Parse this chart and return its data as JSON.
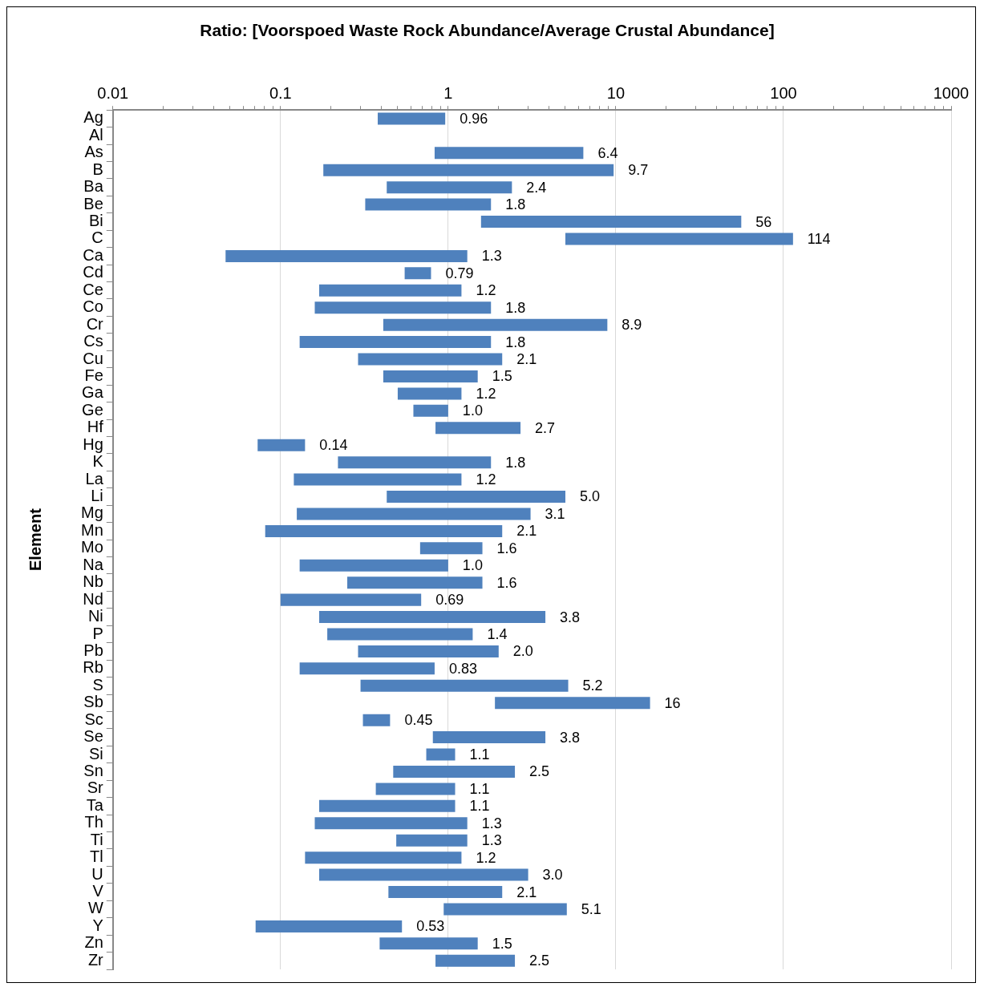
{
  "chart_data": {
    "type": "bar",
    "orientation": "horizontal",
    "title": "Ratio: [Voorspoed Waste Rock Abundance/Average Crustal Abundance]",
    "ylabel": "Element",
    "log": "x",
    "grid": "x",
    "legend": false,
    "color": "#4f81bd",
    "categories": [
      "Ag",
      "Al",
      "As",
      "B",
      "Ba",
      "Be",
      "Bi",
      "C",
      "Ca",
      "Cd",
      "Ce",
      "Co",
      "Cr",
      "Cs",
      "Cu",
      "Fe",
      "Ga",
      "Ge",
      "Hf",
      "Hg",
      "K",
      "La",
      "Li",
      "Mg",
      "Mn",
      "Mo",
      "Na",
      "Nb",
      "Nd",
      "Ni",
      "P",
      "Pb",
      "Rb",
      "S",
      "Sb",
      "Sc",
      "Se",
      "Si",
      "Sn",
      "Sr",
      "Ta",
      "Th",
      "Ti",
      "Tl",
      "U",
      "V",
      "W",
      "Y",
      "Zn",
      "Zr"
    ],
    "base": [
      0.38,
      null,
      0.83,
      0.18,
      0.43,
      0.32,
      1.57,
      5.0,
      0.047,
      0.55,
      0.17,
      0.16,
      0.41,
      0.13,
      0.29,
      0.41,
      0.5,
      0.62,
      0.84,
      0.073,
      0.22,
      0.12,
      0.43,
      0.125,
      0.081,
      0.68,
      0.13,
      0.25,
      0.1,
      0.17,
      0.19,
      0.29,
      0.13,
      0.3,
      1.9,
      0.31,
      0.81,
      0.74,
      0.47,
      0.37,
      0.17,
      0.16,
      0.49,
      0.14,
      0.17,
      0.44,
      0.94,
      0.071,
      0.39,
      0.84
    ],
    "values": [
      0.58,
      null,
      5.57,
      9.52,
      1.97,
      1.48,
      54.43,
      109,
      1.253,
      0.24,
      1.03,
      1.64,
      8.49,
      1.67,
      1.81,
      1.09,
      0.7,
      0.38,
      1.86,
      0.067,
      1.58,
      1.08,
      4.57,
      2.975,
      2.019,
      0.92,
      0.87,
      1.35,
      0.59,
      3.63,
      1.21,
      1.71,
      0.7,
      4.9,
      14.1,
      0.14,
      2.99,
      0.36,
      2.03,
      0.73,
      0.93,
      1.14,
      0.81,
      1.06,
      2.83,
      1.66,
      4.16,
      0.459,
      1.11,
      1.66
    ],
    "value_labels": [
      "0.96",
      null,
      "6.4",
      "9.7",
      "2.4",
      "1.8",
      "56",
      "114",
      "1.3",
      "0.79",
      "1.2",
      "1.8",
      "8.9",
      "1.8",
      "2.1",
      "1.5",
      "1.2",
      "1.0",
      "2.7",
      "0.14",
      "1.8",
      "1.2",
      "5.0",
      "3.1",
      "2.1",
      "1.6",
      "1.0",
      "1.6",
      "0.69",
      "3.8",
      "1.4",
      "2.0",
      "0.83",
      "5.2",
      "16",
      "0.45",
      "3.8",
      "1.1",
      "2.5",
      "1.1",
      "1.1",
      "1.3",
      "1.3",
      "1.2",
      "3.0",
      "2.1",
      "5.1",
      "0.53",
      "1.5",
      "2.5"
    ],
    "xlim": [
      0.01,
      1000
    ],
    "xticks": [
      0.01,
      {
        "value": 0.02,
        "label": null
      },
      {
        "value": 0.03,
        "label": null
      },
      {
        "value": 0.04,
        "label": null
      },
      {
        "value": 0.05,
        "label": null
      },
      {
        "value": 0.06,
        "label": null
      },
      {
        "value": 0.07,
        "label": null
      },
      {
        "value": 0.08,
        "label": null
      },
      {
        "value": 0.09,
        "label": null
      },
      0.1,
      {
        "value": 0.2,
        "label": null
      },
      {
        "value": 0.3,
        "label": null
      },
      {
        "value": 0.4,
        "label": null
      },
      {
        "value": 0.5,
        "label": null
      },
      {
        "value": 0.6,
        "label": null
      },
      {
        "value": 0.7,
        "label": null
      },
      {
        "value": 0.8,
        "label": null
      },
      {
        "value": 0.9,
        "label": null
      },
      1,
      {
        "value": 2,
        "label": null
      },
      {
        "value": 3,
        "label": null
      },
      {
        "value": 4,
        "label": null
      },
      {
        "value": 5,
        "label": null
      },
      {
        "value": 6,
        "label": null
      },
      {
        "value": 7,
        "label": null
      },
      {
        "value": 8,
        "label": null
      },
      {
        "value": 9,
        "label": null
      },
      10,
      {
        "value": 20,
        "label": null
      },
      {
        "value": 30,
        "label": null
      },
      {
        "value": 40,
        "label": null
      },
      {
        "value": 50,
        "label": null
      },
      {
        "value": 60,
        "label": null
      },
      {
        "value": 70,
        "label": null
      },
      {
        "value": 80,
        "label": null
      },
      {
        "value": 90,
        "label": null
      },
      100,
      {
        "value": 200,
        "label": null
      },
      {
        "value": 300,
        "label": null
      },
      {
        "value": 400,
        "label": null
      },
      {
        "value": 500,
        "label": null
      },
      {
        "value": 600,
        "label": null
      },
      {
        "value": 700,
        "label": null
      },
      {
        "value": 800,
        "label": null
      },
      {
        "value": 900,
        "label": null
      },
      1000
    ]
  }
}
